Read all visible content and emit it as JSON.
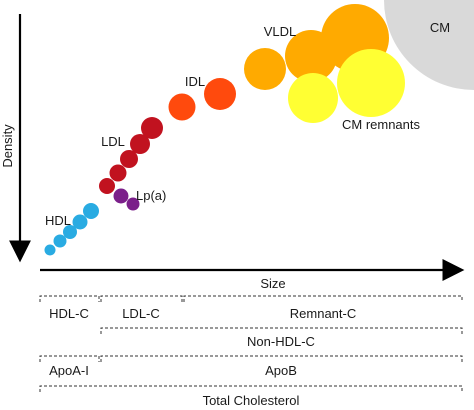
{
  "axes": {
    "y_label": "Density",
    "x_label": "Size"
  },
  "particles": {
    "cm": "CM",
    "vldl": "VLDL",
    "idl": "IDL",
    "ldl": "LDL",
    "lpa": "Lp(a)",
    "hdl": "HDL",
    "cm_remnants": "CM remnants"
  },
  "brackets": {
    "row1": [
      "HDL-C",
      "LDL-C",
      "Remnant-C"
    ],
    "row2": "Non-HDL-C",
    "row3": [
      "ApoA-I",
      "ApoB"
    ],
    "row4": "Total Cholesterol"
  },
  "colors": {
    "hdl": "#29abe2",
    "lpa": "#7b1f8a",
    "ldl": "#c1121f",
    "idl": "#ff4a0d",
    "vldl": "#ffaa00",
    "cm_remnants": "#ffff33",
    "cm": "#d9d9d9"
  }
}
